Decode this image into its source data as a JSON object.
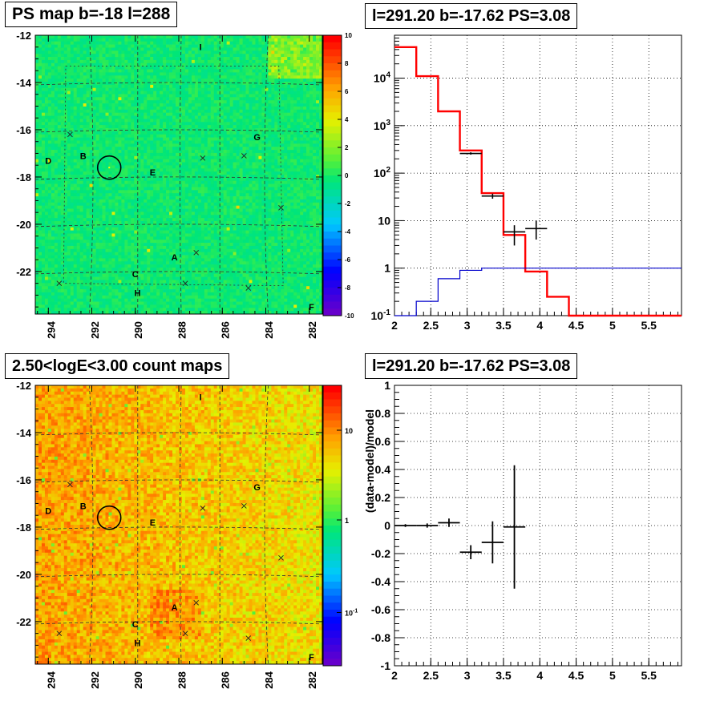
{
  "panels": {
    "ps_map": {
      "title": "PS map b=-18 l=288"
    },
    "spectrum": {
      "title": "l=291.20 b=-17.62 PS=3.08"
    },
    "count_map": {
      "title": "2.50<logE<3.00 count maps"
    },
    "residual": {
      "title": "l=291.20 b=-17.62 PS=3.08"
    }
  },
  "chart_data": [
    {
      "type": "heatmap",
      "title": "PS map b=-18 l=288",
      "x_ticks": [
        "294",
        "292",
        "290",
        "288",
        "286",
        "284",
        "282"
      ],
      "y_ticks": [
        "-12",
        "-14",
        "-16",
        "-18",
        "-20",
        "-22"
      ],
      "xlim": [
        294.6,
        281.4
      ],
      "ylim": [
        -23.8,
        -12.0
      ],
      "colorbar": {
        "ticks": [
          "10",
          "8",
          "6",
          "4",
          "2",
          "0",
          "-2",
          "-4",
          "-6",
          "-8",
          "-10"
        ],
        "range": [
          -10,
          10
        ],
        "scale": "linear"
      },
      "source_labels": [
        {
          "label": "I",
          "l": 287.0,
          "b": -12.5
        },
        {
          "label": "G",
          "l": 284.4,
          "b": -16.3
        },
        {
          "label": "D",
          "l": 294.0,
          "b": -17.3
        },
        {
          "label": "B",
          "l": 292.4,
          "b": -17.1
        },
        {
          "label": "E",
          "l": 289.2,
          "b": -17.8
        },
        {
          "label": "A",
          "l": 288.2,
          "b": -21.4
        },
        {
          "label": "C",
          "l": 290.0,
          "b": -22.1
        },
        {
          "label": "H",
          "l": 289.9,
          "b": -22.9
        },
        {
          "label": "F",
          "l": 281.9,
          "b": -23.5
        }
      ],
      "markers": [
        {
          "l": 293.0,
          "b": -16.2
        },
        {
          "l": 286.9,
          "b": -17.2
        },
        {
          "l": 285.0,
          "b": -17.1
        },
        {
          "l": 283.3,
          "b": -19.3
        },
        {
          "l": 287.2,
          "b": -21.2
        },
        {
          "l": 293.5,
          "b": -22.5
        },
        {
          "l": 287.7,
          "b": -22.5
        },
        {
          "l": 284.8,
          "b": -22.7
        }
      ],
      "circle": {
        "l": 291.2,
        "b": -17.6
      },
      "grid": true
    },
    {
      "type": "line",
      "title": "l=291.20 b=-17.62 PS=3.08",
      "x_ticks": [
        "2",
        "2.5",
        "3",
        "3.5",
        "4",
        "4.5",
        "5",
        "5.5"
      ],
      "y_ticks": [
        "10^-1",
        "1",
        "10",
        "10^2",
        "10^3",
        "10^4"
      ],
      "xlim": [
        2.0,
        5.95
      ],
      "ylim": [
        0.1,
        80000
      ],
      "yscale": "log",
      "grid": true,
      "series": [
        {
          "color": "#ff0000",
          "style": "step",
          "edges": [
            2.0,
            2.3,
            2.6,
            2.9,
            3.2,
            3.5,
            3.8,
            4.1,
            4.4,
            4.7,
            5.0,
            5.3,
            5.6,
            5.95
          ],
          "values": [
            45000,
            11000,
            2000,
            300,
            38,
            5,
            0.85,
            0.25,
            0.1,
            0.1,
            0.1,
            0.1,
            0.1
          ]
        },
        {
          "color": "#0000cc",
          "style": "step",
          "edges": [
            2.0,
            2.3,
            2.6,
            2.9,
            3.2,
            3.5,
            3.8,
            4.1,
            4.4,
            4.7,
            5.0,
            5.3,
            5.6,
            5.95
          ],
          "values": [
            0.06,
            0.2,
            0.6,
            0.9,
            1.0,
            1.0,
            1.0,
            1.0,
            1.0,
            1.0,
            1.0,
            1.0,
            1.0
          ]
        },
        {
          "color": "#000000",
          "style": "errorbar",
          "points": [
            {
              "x": 3.05,
              "y": 260,
              "xerr": 0.15,
              "ylo": 245,
              "yhi": 275
            },
            {
              "x": 3.35,
              "y": 33,
              "xerr": 0.15,
              "ylo": 29,
              "yhi": 37
            },
            {
              "x": 3.65,
              "y": 5.8,
              "xerr": 0.15,
              "ylo": 3.0,
              "yhi": 8.0
            },
            {
              "x": 3.95,
              "y": 6.8,
              "xerr": 0.15,
              "ylo": 4.0,
              "yhi": 10.0
            }
          ]
        }
      ]
    },
    {
      "type": "heatmap",
      "title": "2.50<logE<3.00 count maps",
      "x_ticks": [
        "294",
        "292",
        "290",
        "288",
        "286",
        "284",
        "282"
      ],
      "y_ticks": [
        "-12",
        "-14",
        "-16",
        "-18",
        "-20",
        "-22"
      ],
      "xlim": [
        294.6,
        281.4
      ],
      "ylim": [
        -23.8,
        -12.0
      ],
      "colorbar": {
        "ticks": [
          "10",
          "1",
          "10^-1"
        ],
        "scale": "log"
      },
      "source_labels": [
        {
          "label": "I",
          "l": 287.0,
          "b": -12.5
        },
        {
          "label": "G",
          "l": 284.4,
          "b": -16.3
        },
        {
          "label": "D",
          "l": 294.0,
          "b": -17.3
        },
        {
          "label": "B",
          "l": 292.4,
          "b": -17.1
        },
        {
          "label": "E",
          "l": 289.2,
          "b": -17.8
        },
        {
          "label": "A",
          "l": 288.2,
          "b": -21.4
        },
        {
          "label": "C",
          "l": 290.0,
          "b": -22.1
        },
        {
          "label": "H",
          "l": 289.9,
          "b": -22.9
        },
        {
          "label": "F",
          "l": 281.9,
          "b": -23.5
        }
      ],
      "markers": [
        {
          "l": 293.0,
          "b": -16.2
        },
        {
          "l": 286.9,
          "b": -17.2
        },
        {
          "l": 285.0,
          "b": -17.1
        },
        {
          "l": 283.3,
          "b": -19.3
        },
        {
          "l": 287.2,
          "b": -21.2
        },
        {
          "l": 293.5,
          "b": -22.5
        },
        {
          "l": 287.7,
          "b": -22.5
        },
        {
          "l": 284.8,
          "b": -22.7
        }
      ],
      "circle": {
        "l": 291.2,
        "b": -17.6
      },
      "grid": true
    },
    {
      "type": "scatter",
      "title": "l=291.20 b=-17.62 PS=3.08",
      "ylabel": "(data-model)/model",
      "x_ticks": [
        "2",
        "2.5",
        "3",
        "3.5",
        "4",
        "4.5",
        "5",
        "5.5"
      ],
      "y_ticks": [
        "1",
        "0.8",
        "0.6",
        "0.4",
        "0.2",
        "0",
        "-0.2",
        "-0.4",
        "-0.6",
        "-0.8",
        "-1"
      ],
      "xlim": [
        2.0,
        5.95
      ],
      "ylim": [
        -1,
        1
      ],
      "grid": true,
      "points": [
        {
          "x": 2.15,
          "y": 0.0,
          "xerr": 0.15,
          "ylo": -0.01,
          "yhi": 0.01
        },
        {
          "x": 2.45,
          "y": 0.0,
          "xerr": 0.15,
          "ylo": -0.015,
          "yhi": 0.015
        },
        {
          "x": 2.75,
          "y": 0.02,
          "xerr": 0.15,
          "ylo": -0.01,
          "yhi": 0.05
        },
        {
          "x": 3.05,
          "y": -0.19,
          "xerr": 0.15,
          "ylo": -0.24,
          "yhi": -0.14
        },
        {
          "x": 3.35,
          "y": -0.12,
          "xerr": 0.15,
          "ylo": -0.27,
          "yhi": 0.03
        },
        {
          "x": 3.65,
          "y": -0.01,
          "xerr": 0.15,
          "ylo": -0.45,
          "yhi": 0.43
        }
      ]
    }
  ]
}
